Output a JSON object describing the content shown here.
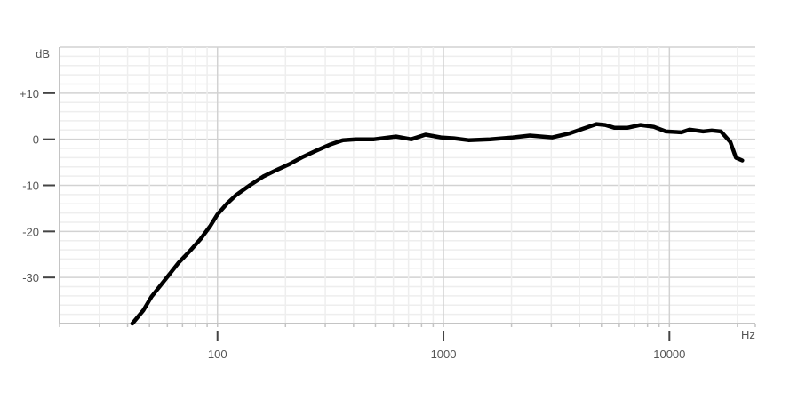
{
  "chart_data": {
    "type": "line",
    "x_scale": "log",
    "xlim": [
      20,
      24000
    ],
    "ylim": [
      -40,
      20
    ],
    "x_unit_label": "Hz",
    "y_unit_label": "dB",
    "x_tick_labels": [
      {
        "value": 100,
        "label": "100"
      },
      {
        "value": 1000,
        "label": "1000"
      },
      {
        "value": 10000,
        "label": "10000"
      }
    ],
    "y_tick_labels": [
      {
        "value": 10,
        "label": "+10"
      },
      {
        "value": 0,
        "label": "0"
      },
      {
        "value": -10,
        "label": "-10"
      },
      {
        "value": -20,
        "label": "-20"
      },
      {
        "value": -30,
        "label": "-30"
      }
    ],
    "grid": true,
    "line_color": "#000000",
    "series": [
      {
        "x": [
          42,
          47,
          51,
          56,
          61,
          67,
          75,
          84,
          93,
          100,
          110,
          121,
          139,
          159,
          182,
          208,
          239,
          273,
          313,
          359,
          411,
          493,
          617,
          720,
          833,
          975,
          1115,
          1290,
          1610,
          2030,
          2410,
          3030,
          3630,
          4150,
          4750,
          5200,
          5700,
          6540,
          7450,
          8530,
          9640,
          11300,
          12300,
          14100,
          15400,
          16900,
          18600,
          19700,
          21000
        ],
        "y": [
          -40,
          -37.1,
          -34.2,
          -31.7,
          -29.4,
          -26.9,
          -24.4,
          -21.7,
          -18.8,
          -16.3,
          -14,
          -12.1,
          -10,
          -8.1,
          -6.7,
          -5.4,
          -3.8,
          -2.5,
          -1.2,
          -0.2,
          0,
          0,
          0.6,
          0,
          1,
          0.4,
          0.2,
          -0.2,
          0,
          0.4,
          0.8,
          0.4,
          1.3,
          2.3,
          3.3,
          3.1,
          2.5,
          2.5,
          3.1,
          2.7,
          1.7,
          1.5,
          2.1,
          1.7,
          1.9,
          1.7,
          -0.6,
          -4,
          -4.6
        ]
      }
    ]
  }
}
